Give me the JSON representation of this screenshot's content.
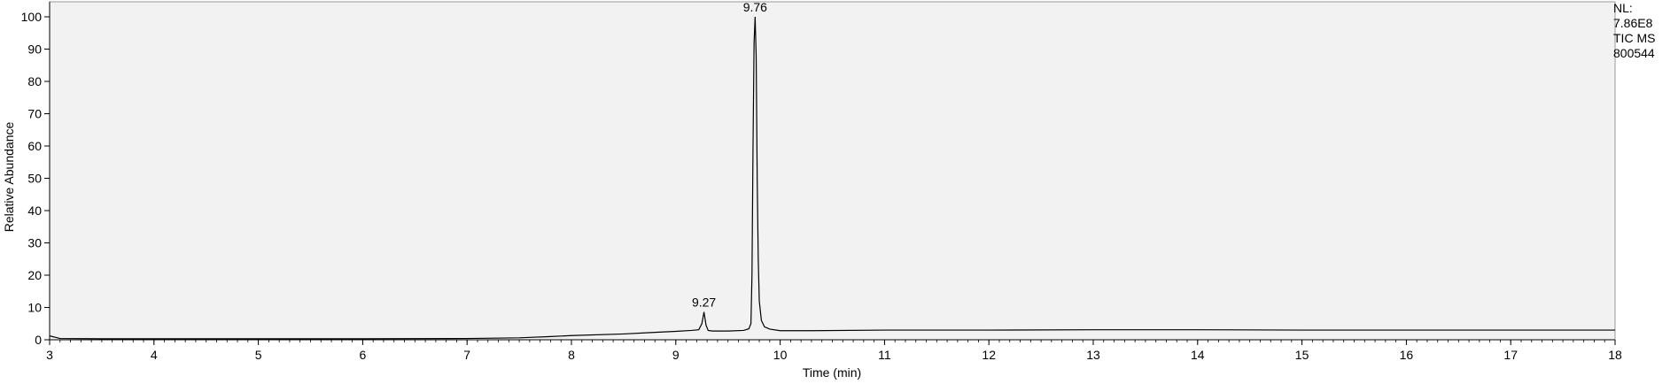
{
  "chart_data": {
    "type": "line",
    "xlabel": "Time (min)",
    "ylabel": "Relative Abundance",
    "xlim": [
      3,
      18
    ],
    "ylim": [
      0,
      100
    ],
    "xticks": [
      3,
      4,
      5,
      6,
      7,
      8,
      9,
      10,
      11,
      12,
      13,
      14,
      15,
      16,
      17,
      18
    ],
    "yticks": [
      0,
      10,
      20,
      30,
      40,
      50,
      60,
      70,
      80,
      90,
      100
    ],
    "grid": false,
    "plot_background": "#f2f2f2",
    "line_color": "#000000",
    "series": [
      {
        "x": [
          3.0,
          3.1,
          3.5,
          4.0,
          5.0,
          6.0,
          7.0,
          7.5,
          7.8,
          8.0,
          8.5,
          8.8,
          9.0,
          9.15,
          9.22,
          9.25,
          9.27,
          9.29,
          9.31,
          9.35,
          9.5,
          9.65,
          9.7,
          9.72,
          9.73,
          9.74,
          9.75,
          9.76,
          9.77,
          9.78,
          9.79,
          9.8,
          9.82,
          9.85,
          9.9,
          10.0,
          10.3,
          11.0,
          12.0,
          13.0,
          14.0,
          15.0,
          16.0,
          17.0,
          18.0
        ],
        "y": [
          1.2,
          0.4,
          0.3,
          0.3,
          0.3,
          0.3,
          0.4,
          0.6,
          1.0,
          1.3,
          1.8,
          2.3,
          2.6,
          2.9,
          3.1,
          5.0,
          8.6,
          4.5,
          2.9,
          2.7,
          2.7,
          2.9,
          3.4,
          5.0,
          20.0,
          60.0,
          92.0,
          100.0,
          88.0,
          50.0,
          25.0,
          12.0,
          6.0,
          4.0,
          3.3,
          2.8,
          2.8,
          3.0,
          3.0,
          3.1,
          3.1,
          3.0,
          3.0,
          3.0,
          3.0
        ]
      }
    ],
    "annotations": [
      {
        "x": 9.27,
        "y": 8.6,
        "label": "9.27"
      },
      {
        "x": 9.76,
        "y": 100.0,
        "label": "9.76"
      }
    ]
  },
  "normalization": {
    "nl_label": "NL:",
    "nl_value": "7.86E8",
    "detector": "TIC  MS",
    "sample_id": "800544"
  }
}
